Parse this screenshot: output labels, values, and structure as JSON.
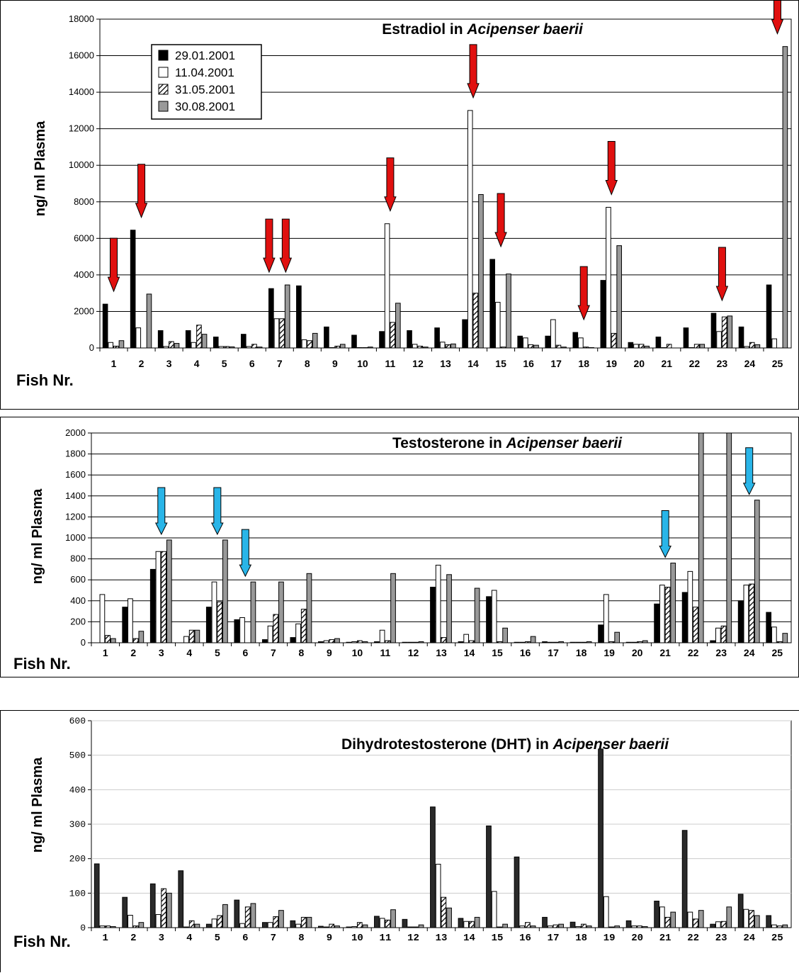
{
  "chart_data": [
    {
      "type": "bar",
      "title": "Estradiol in",
      "title_species": "Acipenser baerii",
      "ylabel": "ng/ ml Plasma",
      "xlabel": "Fish Nr.",
      "ylim": [
        0,
        18000
      ],
      "yticks": [
        0,
        2000,
        4000,
        6000,
        8000,
        10000,
        12000,
        14000,
        16000,
        18000
      ],
      "grid": true,
      "legend": "top-left",
      "categories": [
        "1",
        "2",
        "3",
        "4",
        "5",
        "6",
        "7",
        "8",
        "9",
        "10",
        "11",
        "12",
        "13",
        "14",
        "15",
        "16",
        "17",
        "18",
        "19",
        "20",
        "21",
        "22",
        "23",
        "24",
        "25"
      ],
      "series": [
        {
          "name": "29.01.2001",
          "style": "solid-black",
          "values": [
            2400,
            6450,
            950,
            950,
            600,
            750,
            3250,
            3400,
            1150,
            700,
            900,
            950,
            1100,
            1550,
            4850,
            650,
            650,
            850,
            3700,
            300,
            600,
            1100,
            1900,
            1150,
            3450
          ]
        },
        {
          "name": "11.04.2001",
          "style": "white",
          "values": [
            300,
            1100,
            80,
            300,
            80,
            80,
            1600,
            450,
            20,
            20,
            6800,
            200,
            320,
            13000,
            2500,
            550,
            1550,
            550,
            7700,
            200,
            20,
            20,
            900,
            80,
            500
          ]
        },
        {
          "name": "31.05.2001",
          "style": "hatched",
          "values": [
            100,
            0,
            350,
            1250,
            80,
            200,
            1600,
            400,
            100,
            20,
            1400,
            100,
            180,
            3000,
            50,
            180,
            150,
            50,
            800,
            200,
            200,
            200,
            1700,
            300,
            0
          ]
        },
        {
          "name": "30.08.2001",
          "style": "gray",
          "values": [
            400,
            2950,
            250,
            750,
            60,
            50,
            3450,
            800,
            200,
            50,
            2450,
            50,
            220,
            8400,
            4050,
            150,
            50,
            20,
            5600,
            100,
            0,
            200,
            1750,
            180,
            16500
          ]
        }
      ],
      "arrows": [
        1,
        2,
        7,
        7,
        11,
        14,
        15,
        18,
        19,
        23,
        25
      ],
      "arrow_color": "#e0100f"
    },
    {
      "type": "bar",
      "title": "Testosterone in",
      "title_species": "Acipenser baerii",
      "ylabel": "ng/ ml Plasma",
      "xlabel": "Fish Nr.",
      "ylim": [
        0,
        2000
      ],
      "yticks": [
        0,
        200,
        400,
        600,
        800,
        1000,
        1200,
        1400,
        1600,
        1800,
        2000
      ],
      "grid": true,
      "categories": [
        "1",
        "2",
        "3",
        "4",
        "5",
        "6",
        "7",
        "8",
        "9",
        "10",
        "11",
        "12",
        "13",
        "14",
        "15",
        "16",
        "17",
        "18",
        "19",
        "20",
        "21",
        "22",
        "23",
        "24",
        "25"
      ],
      "series": [
        {
          "name": "29.01.2001",
          "style": "solid-black",
          "values": [
            0,
            340,
            700,
            0,
            340,
            220,
            30,
            50,
            10,
            5,
            10,
            5,
            530,
            10,
            440,
            5,
            10,
            5,
            170,
            5,
            370,
            480,
            20,
            400,
            290
          ]
        },
        {
          "name": "11.04.2001",
          "style": "white",
          "values": [
            460,
            420,
            870,
            60,
            580,
            240,
            160,
            180,
            20,
            10,
            120,
            5,
            740,
            80,
            500,
            5,
            5,
            5,
            460,
            5,
            550,
            680,
            140,
            550,
            150
          ]
        },
        {
          "name": "31.05.2001",
          "style": "hatched",
          "values": [
            70,
            40,
            870,
            120,
            390,
            0,
            270,
            320,
            30,
            20,
            20,
            5,
            50,
            20,
            10,
            10,
            5,
            5,
            10,
            10,
            530,
            340,
            160,
            560,
            10
          ]
        },
        {
          "name": "30.08.2001",
          "style": "gray",
          "values": [
            40,
            110,
            980,
            120,
            980,
            580,
            580,
            660,
            40,
            10,
            660,
            10,
            650,
            520,
            140,
            60,
            10,
            10,
            100,
            20,
            760,
            2050,
            2050,
            1360,
            90
          ]
        }
      ],
      "arrows": [
        3,
        5,
        6,
        21,
        24
      ],
      "arrow_color": "#29b5e8"
    },
    {
      "type": "bar",
      "title": "Dihydrotestosterone (DHT) in",
      "title_species": "Acipenser baerii",
      "ylabel": "ng/ ml Plasma",
      "xlabel": "Fish Nr.",
      "ylim": [
        0,
        600
      ],
      "yticks": [
        0,
        100,
        200,
        300,
        400,
        500,
        600
      ],
      "grid": true,
      "categories": [
        "1",
        "2",
        "3",
        "4",
        "5",
        "6",
        "7",
        "8",
        "9",
        "10",
        "11",
        "12",
        "13",
        "14",
        "15",
        "16",
        "17",
        "18",
        "19",
        "20",
        "21",
        "22",
        "23",
        "24",
        "25"
      ],
      "series": [
        {
          "name": "29.01.2001",
          "style": "solid-dark",
          "values": [
            185,
            88,
            127,
            165,
            10,
            80,
            15,
            20,
            4,
            2,
            33,
            24,
            350,
            27,
            295,
            205,
            30,
            16,
            518,
            20,
            77,
            282,
            10,
            97,
            35
          ]
        },
        {
          "name": "11.04.2001",
          "style": "white",
          "values": [
            5,
            36,
            38,
            2,
            25,
            12,
            15,
            10,
            2,
            3,
            27,
            2,
            184,
            18,
            105,
            5,
            5,
            3,
            90,
            5,
            60,
            45,
            17,
            53,
            8
          ]
        },
        {
          "name": "31.05.2001",
          "style": "hatched",
          "values": [
            5,
            5,
            113,
            20,
            35,
            60,
            32,
            30,
            10,
            15,
            22,
            2,
            88,
            18,
            2,
            15,
            8,
            10,
            2,
            5,
            30,
            25,
            18,
            50,
            5
          ]
        },
        {
          "name": "30.08.2001",
          "style": "gray",
          "values": [
            3,
            15,
            100,
            10,
            67,
            70,
            50,
            30,
            5,
            8,
            52,
            8,
            57,
            30,
            10,
            5,
            10,
            5,
            5,
            3,
            45,
            50,
            60,
            35,
            8
          ]
        }
      ]
    }
  ]
}
